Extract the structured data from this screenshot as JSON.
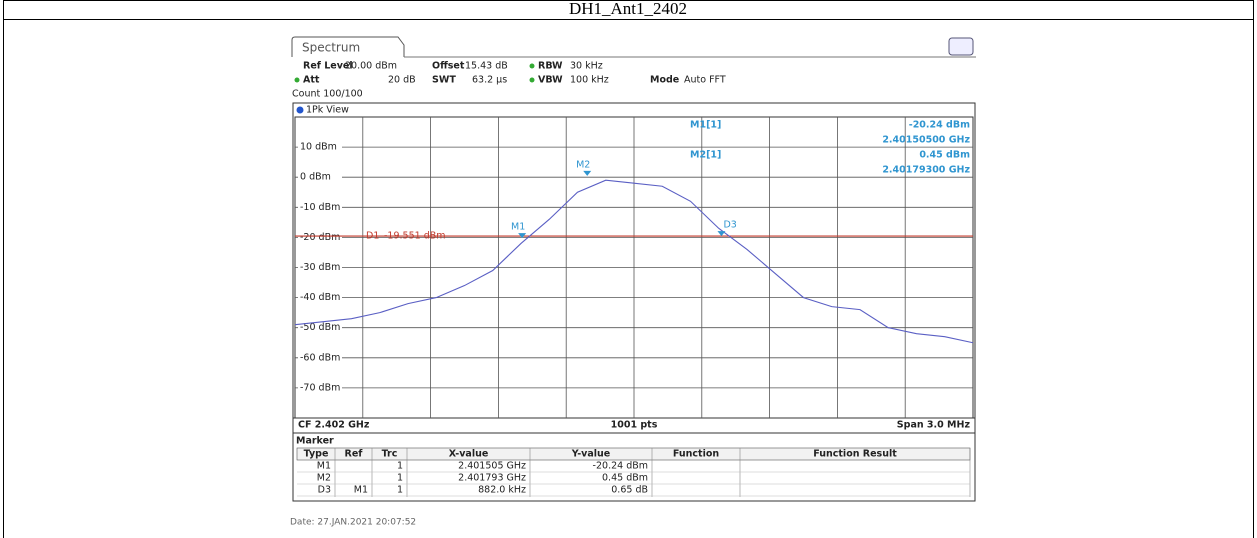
{
  "header": {
    "title": "DH1_Ant1_2402"
  },
  "analyzer": {
    "tab": "Spectrum",
    "settings": [
      [
        "Ref Level",
        "20.00 dBm"
      ],
      [
        "Offset",
        "15.43 dB"
      ],
      [
        "RBW",
        "30 kHz"
      ],
      [
        "Att",
        "20 dB"
      ],
      [
        "SWT",
        "63.2 µs"
      ],
      [
        "VBW",
        "100 kHz"
      ],
      [
        "Mode",
        "Auto FFT"
      ]
    ],
    "count": "Count 100/100",
    "view": "1Pk View",
    "readouts": [
      {
        "name": "M1[1]",
        "level": "-20.24 dBm",
        "freq": "2.40150500 GHz"
      },
      {
        "name": "M2[1]",
        "level": "0.45 dBm",
        "freq": "2.40179300 GHz"
      }
    ],
    "footer": {
      "left": "CF 2.402 GHz",
      "center": "1001 pts",
      "right": "Span 3.0 MHz"
    },
    "marker_table": {
      "title": "Marker",
      "columns": [
        "Type",
        "Ref",
        "Trc",
        "X-value",
        "Y-value",
        "Function",
        "Function Result"
      ],
      "rows": [
        {
          "type": "M1",
          "trc": "1",
          "x": "2.401505 GHz",
          "y": "-20.24 dBm"
        },
        {
          "type": "M2",
          "trc": "1",
          "x": "2.401793 GHz",
          "y": "0.45 dBm"
        },
        {
          "type": "D3",
          "ref": "M1",
          "trc": "1",
          "x": "882.0 kHz",
          "y": "0.65 dB"
        }
      ]
    },
    "date": "Date: 27.JAN.2021  20:07:52"
  },
  "chart_data": {
    "type": "line",
    "x": [
      2400.5,
      2400.625,
      2400.75,
      2400.875,
      2401.0,
      2401.125,
      2401.25,
      2401.375,
      2401.5,
      2401.625,
      2401.75,
      2401.875,
      2402.0,
      2402.125,
      2402.25,
      2402.375,
      2402.5,
      2402.625,
      2402.75,
      2402.875,
      2403.0,
      2403.125,
      2403.25,
      2403.375,
      2403.5
    ],
    "values": [
      -49,
      -48,
      -47,
      -45,
      -42,
      -40,
      -36,
      -31,
      -22,
      -14,
      -5,
      -1,
      -2,
      -3,
      -8,
      -17,
      -24,
      -32,
      -40,
      -43,
      -44,
      -50,
      -52,
      -53,
      -55
    ],
    "color": "#5a5fc4",
    "xlim": [
      2400.5,
      2403.5
    ],
    "ylim": [
      -80,
      20
    ],
    "yticks": [
      {
        "value": 10,
        "label": "10 dBm"
      },
      {
        "value": 0,
        "label": "0 dBm"
      },
      {
        "value": -10,
        "label": "-10 dBm"
      },
      {
        "value": -20,
        "label": "-20 dBm"
      },
      {
        "value": -30,
        "label": "-30 dBm"
      },
      {
        "value": -40,
        "label": "-40 dBm"
      },
      {
        "value": -50,
        "label": "-50 dBm"
      },
      {
        "value": -60,
        "label": "-60 dBm"
      },
      {
        "value": -70,
        "label": "-70 dBm"
      }
    ],
    "grid": true,
    "markers": [
      {
        "label": "M1",
        "x": 2401.505,
        "y": -20.24
      },
      {
        "label": "M2",
        "x": 2401.793,
        "y": 0.45
      },
      {
        "label": "D3",
        "x": 2402.387,
        "y": -19.59
      }
    ],
    "marker_color": "#2f95d0",
    "display_line": {
      "name": "D1",
      "label": "-19.551 dBm",
      "value": -19.551,
      "color": "#c0392b"
    }
  }
}
